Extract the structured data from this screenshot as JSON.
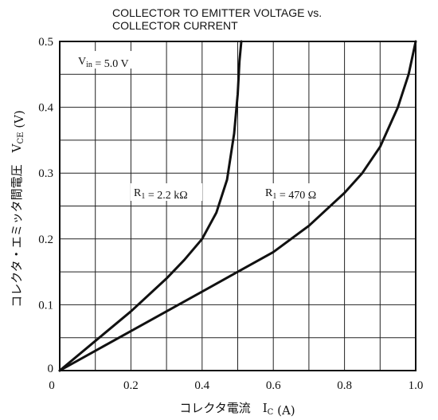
{
  "chart_data": {
    "type": "line",
    "title_lines": [
      "COLLECTOR TO EMITTER VOLTAGE vs.",
      "COLLECTOR CURRENT"
    ],
    "xlabel": "コレクタ電流　I_C (A)",
    "ylabel": "コレクタ・エミッタ間電圧　V_CE (V)",
    "xlim": [
      0,
      1.0
    ],
    "ylim": [
      0,
      0.5
    ],
    "x_ticks": [
      "0",
      "0.2",
      "0.4",
      "0.6",
      "0.8",
      "1.0"
    ],
    "y_ticks": [
      "0",
      "0.1",
      "0.2",
      "0.3",
      "0.4",
      "0.5"
    ],
    "grid": true,
    "condition": "V_in = 5.0 V",
    "series": [
      {
        "name": "R_1 = 2.2 kΩ",
        "x": [
          0,
          0.1,
          0.2,
          0.3,
          0.35,
          0.4,
          0.44,
          0.47,
          0.49,
          0.5,
          0.505,
          0.51
        ],
        "y": [
          0,
          0.045,
          0.09,
          0.14,
          0.168,
          0.2,
          0.24,
          0.29,
          0.36,
          0.42,
          0.47,
          0.5
        ]
      },
      {
        "name": "R_1 = 470 Ω",
        "x": [
          0,
          0.1,
          0.2,
          0.3,
          0.4,
          0.5,
          0.6,
          0.7,
          0.8,
          0.85,
          0.9,
          0.95,
          0.98,
          1.0
        ],
        "y": [
          0,
          0.03,
          0.06,
          0.09,
          0.12,
          0.15,
          0.18,
          0.22,
          0.27,
          0.3,
          0.34,
          0.4,
          0.45,
          0.5
        ]
      }
    ],
    "annotations": [
      "V_in = 5.0 V",
      "R_1 = 2.2 kΩ",
      "R_1 = 470 Ω"
    ]
  }
}
